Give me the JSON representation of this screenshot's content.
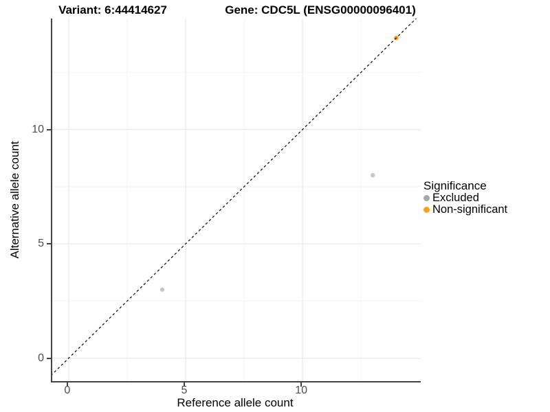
{
  "header": {
    "variant_title": "Variant: 6:44414627",
    "gene_title": "Gene: CDC5L (ENSG00000096401)"
  },
  "chart_data": {
    "type": "scatter",
    "title": "Variant: 6:44414627 — Gene: CDC5L (ENSG00000096401)",
    "xlabel": "Reference allele count",
    "ylabel": "Alternative allele count",
    "xlim": [
      -0.7,
      15.05
    ],
    "ylim": [
      -1.0,
      14.85
    ],
    "x_ticks": [
      0,
      5,
      10
    ],
    "y_ticks": [
      0,
      5,
      10
    ],
    "x_minor_gridlines": [
      2.5,
      7.5,
      12.5
    ],
    "y_minor_gridlines": [
      2.5,
      7.5,
      12.5
    ],
    "grid": true,
    "identity_line": {
      "equation": "y = x",
      "style": "dashed",
      "color": "#000000"
    },
    "series": [
      {
        "name": "Excluded",
        "color": "#c6c6c6",
        "points": [
          [
            4,
            3
          ],
          [
            13,
            8
          ]
        ]
      },
      {
        "name": "Non-significant",
        "color": "#f79b1d",
        "points": [
          [
            14,
            14
          ]
        ]
      }
    ],
    "legend": {
      "title": "Significance",
      "position": "right",
      "entries": [
        {
          "label": "Excluded",
          "color": "#a8a8a8"
        },
        {
          "label": "Non-significant",
          "color": "#f9a11b"
        }
      ]
    }
  }
}
